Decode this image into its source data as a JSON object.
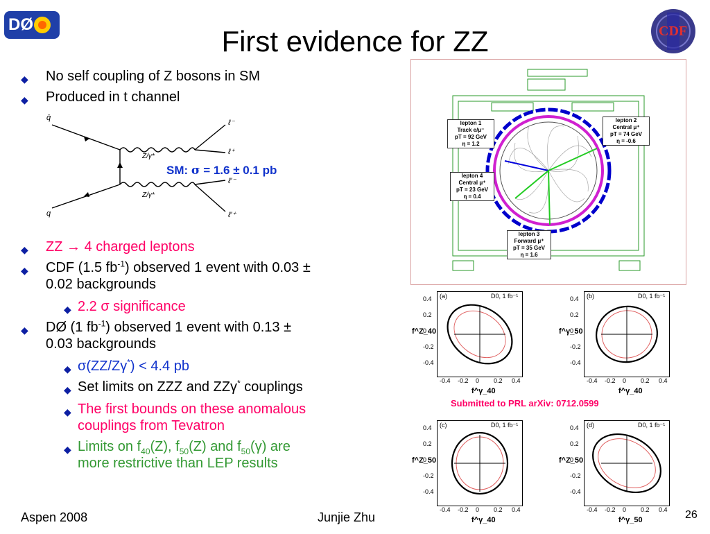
{
  "header": {
    "left_logo": "DØ",
    "title": "First evidence for ZZ",
    "right_logo": "CDF"
  },
  "bullets_top": [
    "No self coupling of Z bosons in SM",
    "Produced in t channel"
  ],
  "feynman": {
    "q1": "q̄",
    "q2": "q",
    "l1": "ℓ⁻",
    "l2": "ℓ⁺",
    "l3": "ℓ′⁻",
    "l4": "ℓ′⁺",
    "boson1": "Z/γ*",
    "boson2": "Z/γ*"
  },
  "sm_xsec": {
    "label": "SM:",
    "sigma": "σ",
    "value": "= 1.6 ± 0.1 pb"
  },
  "bullets_main": {
    "zz": {
      "a": "ZZ",
      "arrow": "→",
      "b": "4 charged leptons"
    },
    "cdf_a": "CDF (1.5 fb",
    "cdf_sup": "-1",
    "cdf_b": ") observed 1 event with 0.03 ±",
    "cdf_c": "0.02 backgrounds",
    "cdf_sig": "2.2 σ significance",
    "d0_a": "DØ (1 fb",
    "d0_sup": "-1",
    "d0_b": ") observed 1 event with 0.13 ±",
    "d0_c": "0.03 backgrounds",
    "limit_a": "σ(ZZ/Zγ",
    "limit_sup": "*",
    "limit_b": ") < 4.4 pb",
    "coup_a": "Set limits on ZZZ and ZZγ",
    "coup_sup": "*",
    "coup_b": " couplings",
    "first_a": "The first bounds on these anomalous",
    "first_b": "couplings from Tevatron",
    "lim_line1_a": "Limits on f",
    "lim_line1_s1": "40",
    "lim_line1_b": "(Z), f",
    "lim_line1_s2": "50",
    "lim_line1_c": "(Z) and f",
    "lim_line1_s3": "50",
    "lim_line1_d": "(γ) are",
    "lim_line2": "more restrictive than LEP results"
  },
  "event_display": {
    "lepton1": [
      "lepton 1",
      "Track e/μ⁻",
      "pT = 92 GeV",
      "η = 1.2"
    ],
    "lepton2": [
      "lepton 2",
      "Central μ⁺",
      "pT = 74 GeV",
      "η = -0.6"
    ],
    "lepton3": [
      "lepton 3",
      "Forward μ⁺",
      "pT = 35 GeV",
      "η = 1.6"
    ],
    "lepton4": [
      "lepton 4",
      "Central μ⁺",
      "pT = 23 GeV",
      "η = 0.4"
    ]
  },
  "plots": {
    "submitted": "Submitted to PRL arXiv: 0712.0599",
    "panels": [
      {
        "tag": "(a)",
        "header": "D0, 1 fb⁻¹",
        "ylabel": "f^Z_40",
        "xlabel": "f^γ_40"
      },
      {
        "tag": "(b)",
        "header": "D0, 1 fb⁻¹",
        "ylabel": "f^γ_50",
        "xlabel": "f^γ_40"
      },
      {
        "tag": "(c)",
        "header": "D0, 1 fb⁻¹",
        "ylabel": "f^Z_50",
        "xlabel": "f^γ_40"
      },
      {
        "tag": "(d)",
        "header": "D0, 1 fb⁻¹",
        "ylabel": "f^Z_50",
        "xlabel": "f^γ_50"
      }
    ],
    "ticks": [
      "-0.4",
      "-0.2",
      "0",
      "0.2",
      "0.4"
    ]
  },
  "footer": {
    "left": "Aspen 2008",
    "center": "Junjie Zhu",
    "page": "26"
  }
}
